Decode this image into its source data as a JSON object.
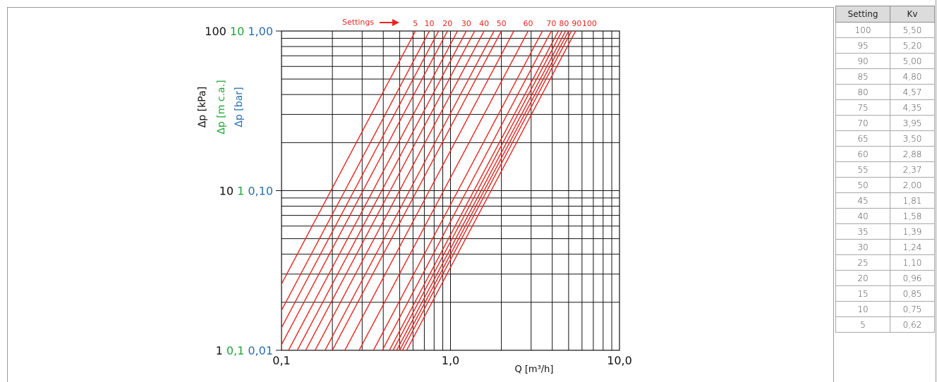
{
  "chart_data": {
    "type": "line",
    "x_scale": "log",
    "y_scale": "log",
    "xlim": [
      0.1,
      10.0
    ],
    "ylim": [
      1,
      100
    ],
    "x_tick_labels": [
      "0,1",
      "1,0",
      "10,0"
    ],
    "x_ticks": [
      0.1,
      1.0,
      10.0
    ],
    "xlabel": "Q [m³/h]",
    "y_ticks": [
      1,
      10,
      100
    ],
    "y_tick_labels": {
      "kpa": [
        "1",
        "10",
        "100"
      ],
      "mca": [
        "0,1",
        "1",
        "10"
      ],
      "bar": [
        "0,01",
        "0,10",
        "1,00"
      ]
    },
    "ylabels": {
      "kpa": "Δp [kPa]",
      "mca": "Δp [m c.a.]",
      "bar": "Δp [bar]"
    },
    "grid": true,
    "settings_label": "Settings",
    "series_label_values": [
      "5",
      "10",
      "20",
      "30",
      "40",
      "50",
      "60",
      "70",
      "80",
      "90",
      "100"
    ],
    "series": [
      {
        "setting": 5,
        "kv": 0.62
      },
      {
        "setting": 10,
        "kv": 0.75
      },
      {
        "setting": 15,
        "kv": 0.85
      },
      {
        "setting": 20,
        "kv": 0.96
      },
      {
        "setting": 25,
        "kv": 1.1
      },
      {
        "setting": 30,
        "kv": 1.24
      },
      {
        "setting": 35,
        "kv": 1.39
      },
      {
        "setting": 40,
        "kv": 1.58
      },
      {
        "setting": 45,
        "kv": 1.81
      },
      {
        "setting": 50,
        "kv": 2.0
      },
      {
        "setting": 55,
        "kv": 2.37
      },
      {
        "setting": 60,
        "kv": 2.88
      },
      {
        "setting": 65,
        "kv": 3.5
      },
      {
        "setting": 70,
        "kv": 3.95
      },
      {
        "setting": 75,
        "kv": 4.35
      },
      {
        "setting": 80,
        "kv": 4.57
      },
      {
        "setting": 85,
        "kv": 4.8
      },
      {
        "setting": 90,
        "kv": 5.0
      },
      {
        "setting": 95,
        "kv": 5.2
      },
      {
        "setting": 100,
        "kv": 5.5
      }
    ],
    "colors": {
      "curve": "#e8251f",
      "kpa": "#111111",
      "mca": "#22a33a",
      "bar": "#2a6db0",
      "grid": "#111111"
    }
  },
  "table": {
    "headers": [
      "Setting",
      "Kv"
    ],
    "rows": [
      [
        "100",
        "5,50"
      ],
      [
        "95",
        "5,20"
      ],
      [
        "90",
        "5,00"
      ],
      [
        "85",
        "4,80"
      ],
      [
        "80",
        "4,57"
      ],
      [
        "75",
        "4,35"
      ],
      [
        "70",
        "3,95"
      ],
      [
        "65",
        "3,50"
      ],
      [
        "60",
        "2,88"
      ],
      [
        "55",
        "2,37"
      ],
      [
        "50",
        "2,00"
      ],
      [
        "45",
        "1,81"
      ],
      [
        "40",
        "1,58"
      ],
      [
        "35",
        "1,39"
      ],
      [
        "30",
        "1,24"
      ],
      [
        "25",
        "1,10"
      ],
      [
        "20",
        "0,96"
      ],
      [
        "15",
        "0,85"
      ],
      [
        "10",
        "0,75"
      ],
      [
        "5",
        "0,62"
      ]
    ]
  }
}
